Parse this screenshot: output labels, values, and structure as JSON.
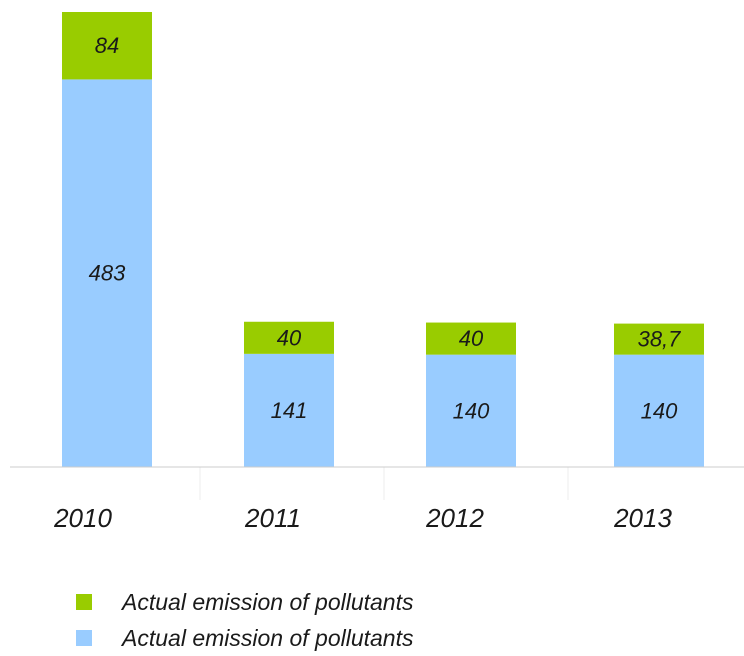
{
  "chart_data": {
    "type": "bar",
    "stacked": true,
    "categories": [
      "2010",
      "2011",
      "2012",
      "2013"
    ],
    "series": [
      {
        "name": "Actual emission of pollutants",
        "color": "#99ccff",
        "values": [
          483,
          141,
          140,
          140
        ],
        "labels": [
          "483",
          "141",
          "140",
          "140"
        ]
      },
      {
        "name": "Actual emission of pollutants",
        "color": "#99cc00",
        "values": [
          84,
          40,
          40,
          38.7
        ],
        "labels": [
          "84",
          "40",
          "40",
          "38,7"
        ]
      }
    ],
    "title": "",
    "xlabel": "",
    "ylabel": "",
    "ylim": [
      0,
      567
    ],
    "grid": false,
    "legend_position": "bottom-left",
    "axis_color": "#cccccc"
  },
  "legend": [
    {
      "label": "Actual emission of pollutants",
      "color": "#99cc00"
    },
    {
      "label": "Actual emission of pollutants",
      "color": "#99ccff"
    }
  ]
}
